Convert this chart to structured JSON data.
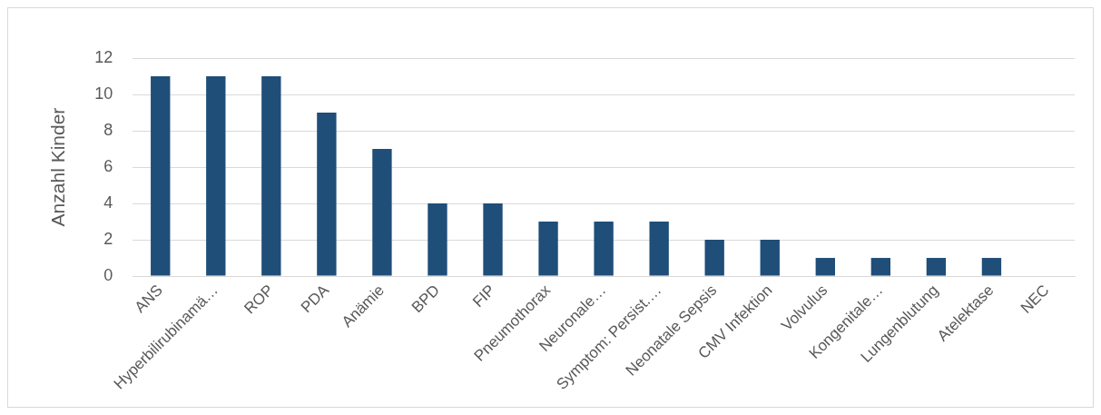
{
  "chart_data": {
    "type": "bar",
    "ylabel": "Anzahl Kinder",
    "categories": [
      "ANS",
      "Hyperbilirubinamä…",
      "ROP",
      "PDA",
      "Anämie",
      "BPD",
      "FIP",
      "Pneumothorax",
      "Neuronale…",
      "Symptom: Persist.…",
      "Neonatale Sepsis",
      "CMV Infektion",
      "Volvulus",
      "Kongenitale…",
      "Lungenblutung",
      "Atelektase",
      "NEC"
    ],
    "values": [
      11,
      11,
      11,
      9,
      7,
      4,
      4,
      3,
      3,
      3,
      2,
      2,
      1,
      1,
      1,
      1,
      0
    ],
    "color": "#1f4e79",
    "ylim": [
      0,
      12
    ],
    "yticks": [
      0,
      2,
      4,
      6,
      8,
      10,
      12
    ],
    "grid": "y"
  }
}
